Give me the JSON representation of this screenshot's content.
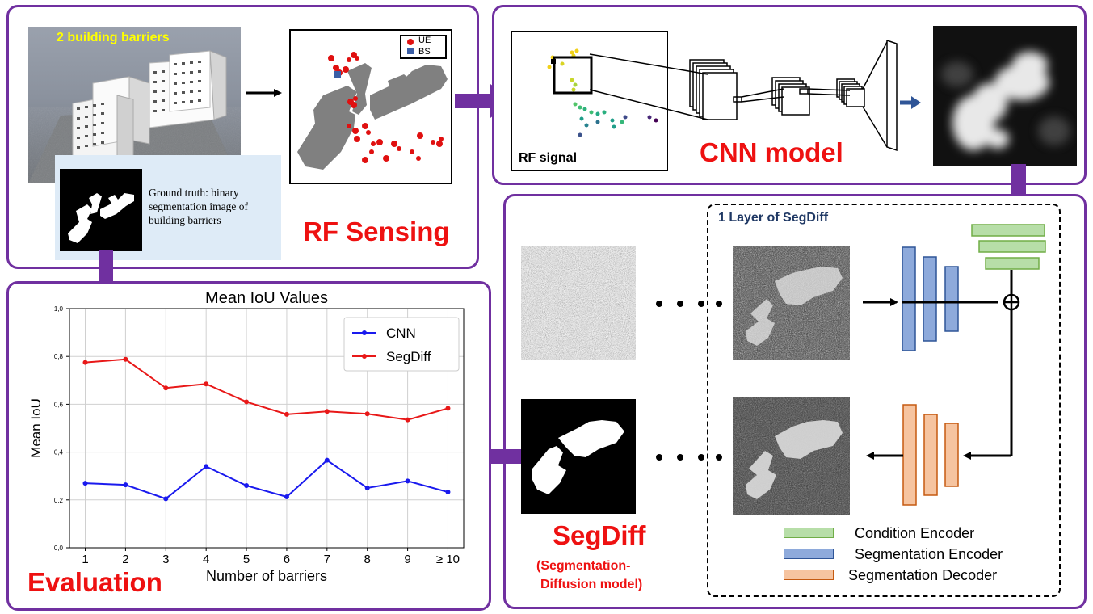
{
  "rf_sensing": {
    "photo_caption": "2 building barriers",
    "legend_ue": "UE",
    "legend_bs": "BS",
    "ground_truth_text": "Ground truth: binary segmentation image of building barriers",
    "title": "RF Sensing"
  },
  "cnn": {
    "rf_signal_label": "RF signal",
    "title": "CNN model"
  },
  "segdiff": {
    "layer_title": "1 Layer of SegDiff",
    "title": "SegDiff",
    "subtitle_line1": "(Segmentation-",
    "subtitle_line2": "Diffusion model)",
    "legend": [
      {
        "label": "Condition Encoder",
        "color": "#b7dea8"
      },
      {
        "label": "Segmentation Encoder",
        "color": "#8eaadb"
      },
      {
        "label": "Segmentation Decoder",
        "color": "#f6c4a0"
      }
    ]
  },
  "evaluation": {
    "title": "Evaluation"
  },
  "chart_data": {
    "type": "line",
    "title": "Mean IoU Values",
    "xlabel": "Number of barriers",
    "ylabel": "Mean IoU",
    "categories": [
      "1",
      "2",
      "3",
      "4",
      "5",
      "6",
      "7",
      "8",
      "9",
      "≥ 10"
    ],
    "ylim": [
      0.0,
      1.0
    ],
    "yticks": [
      "0,0",
      "0,2",
      "0,4",
      "0,6",
      "0,8",
      "1,0"
    ],
    "grid": true,
    "legend_position": "top-right",
    "series": [
      {
        "name": "CNN",
        "color": "#1a1aee",
        "values": [
          0.27,
          0.263,
          0.205,
          0.34,
          0.26,
          0.213,
          0.366,
          0.25,
          0.279,
          0.233
        ]
      },
      {
        "name": "SegDiff",
        "color": "#e81818",
        "values": [
          0.775,
          0.788,
          0.668,
          0.685,
          0.61,
          0.558,
          0.57,
          0.56,
          0.535,
          0.583
        ]
      }
    ]
  }
}
